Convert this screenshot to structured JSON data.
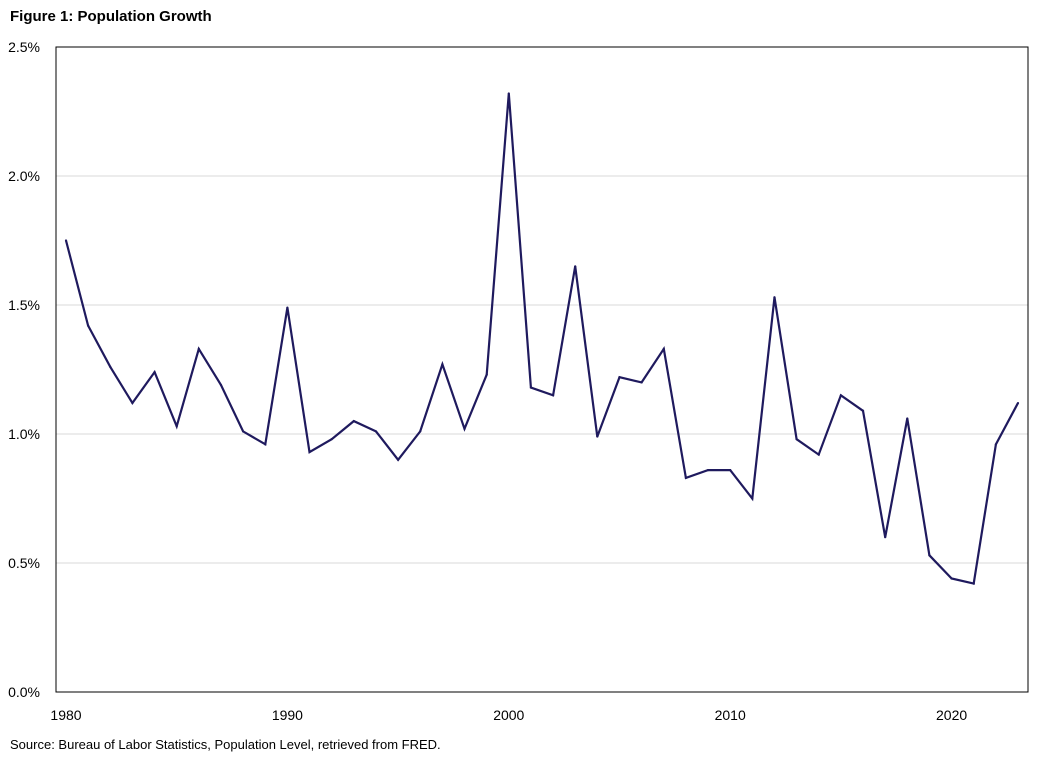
{
  "chart_data": {
    "type": "line",
    "title": "Figure 1: Population Growth",
    "source": "Source: Bureau of Labor Statistics, Population Level, retrieved from FRED.",
    "xlabel": "",
    "ylabel": "",
    "xlim": [
      1980,
      2023
    ],
    "ylim": [
      0,
      2.5
    ],
    "x_ticks": [
      1980,
      1990,
      2000,
      2010,
      2020
    ],
    "x_tick_labels": [
      "1980",
      "1990",
      "2000",
      "2010",
      "2020"
    ],
    "y_ticks": [
      0,
      0.5,
      1.0,
      1.5,
      2.0,
      2.5
    ],
    "y_tick_labels": [
      "0.0%",
      "0.5%",
      "1.0%",
      "1.5%",
      "2.0%",
      "2.5%"
    ],
    "grid": "horizontal",
    "line_color": "#1f1a5e",
    "grid_color": "#d9d9d9",
    "x": [
      1980,
      1981,
      1982,
      1983,
      1984,
      1985,
      1986,
      1987,
      1988,
      1989,
      1990,
      1991,
      1992,
      1993,
      1994,
      1995,
      1996,
      1997,
      1998,
      1999,
      2000,
      2001,
      2002,
      2003,
      2004,
      2005,
      2006,
      2007,
      2008,
      2009,
      2010,
      2011,
      2012,
      2013,
      2014,
      2015,
      2016,
      2017,
      2018,
      2019,
      2020,
      2021,
      2022,
      2023
    ],
    "series": [
      {
        "values": [
          1.75,
          1.42,
          1.26,
          1.12,
          1.24,
          1.03,
          1.33,
          1.19,
          1.01,
          0.96,
          1.49,
          0.93,
          0.98,
          1.05,
          1.01,
          0.9,
          1.01,
          1.27,
          1.02,
          1.23,
          2.32,
          1.18,
          1.15,
          1.65,
          0.99,
          1.22,
          1.2,
          1.33,
          0.83,
          0.86,
          0.86,
          0.75,
          1.53,
          0.98,
          0.92,
          1.15,
          1.09,
          0.6,
          1.06,
          0.53,
          0.44,
          0.42,
          0.96,
          1.12
        ]
      }
    ]
  }
}
